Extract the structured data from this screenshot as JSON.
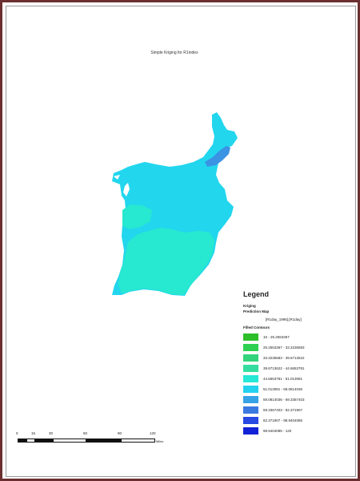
{
  "map": {
    "title": "Simple Kriging for R1index"
  },
  "legend": {
    "heading": "Legend",
    "group_line1": "Kriging",
    "group_line2": "Prediction Map",
    "layer_name": "[R1day_1995].[R1day]",
    "section_title": "Filled Contours",
    "classes": [
      {
        "label": "15 - 25.2553367",
        "color": "#2dbf2a"
      },
      {
        "label": "25.2553367 - 33.3236583",
        "color": "#2fd052"
      },
      {
        "label": "33.3236583 - 39.6713622",
        "color": "#33d37b"
      },
      {
        "label": "39.6713622 - 44.6653781",
        "color": "#34dd9f"
      },
      {
        "label": "44.6653781 - 51.013081",
        "color": "#25e8d5"
      },
      {
        "label": "51.013081 - 59.0814036",
        "color": "#23d2ee"
      },
      {
        "label": "59.0814036 - 69.3367403",
        "color": "#36a3e6"
      },
      {
        "label": "69.3367403 - 82.371907",
        "color": "#3a7ae0"
      },
      {
        "label": "82.371907 - 98.9404085",
        "color": "#2849e2"
      },
      {
        "label": "98.9404085 - 120",
        "color": "#1222d6"
      }
    ]
  },
  "scalebar": {
    "ticks": [
      "0",
      "15",
      "30",
      "60",
      "90",
      "120"
    ],
    "unit": "Miles"
  },
  "colors": {
    "frame": "#6b2f2f",
    "region_main": "#22d6ee",
    "region_south": "#27e8d0",
    "region_north": "#3b93e4"
  }
}
